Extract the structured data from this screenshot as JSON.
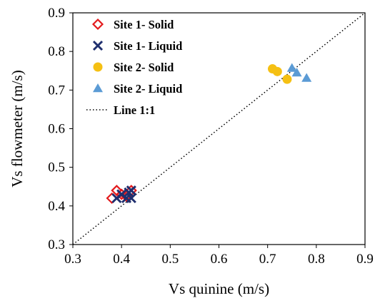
{
  "chart_data": {
    "type": "scatter",
    "xlabel": "Vs quinine (m/s)",
    "ylabel": "Vs flowmeter  (m/s)",
    "xlim": [
      0.3,
      0.9
    ],
    "ylim": [
      0.3,
      0.9
    ],
    "xticks": [
      "0.3",
      "0.4",
      "0.5",
      "0.6",
      "0.7",
      "0.8",
      "0.9"
    ],
    "yticks": [
      "0.3",
      "0.4",
      "0.5",
      "0.6",
      "0.7",
      "0.8",
      "0.9"
    ],
    "grid": false,
    "legend_position": "top-left",
    "series": [
      {
        "name": "Site 1- Solid",
        "marker": "diamond-open",
        "color": "#e31a1c",
        "points": [
          {
            "x": 0.38,
            "y": 0.42
          },
          {
            "x": 0.39,
            "y": 0.44
          },
          {
            "x": 0.4,
            "y": 0.43
          },
          {
            "x": 0.41,
            "y": 0.425
          },
          {
            "x": 0.42,
            "y": 0.44
          }
        ]
      },
      {
        "name": "Site 1- Liquid",
        "marker": "x",
        "color": "#1f2f6e",
        "points": [
          {
            "x": 0.39,
            "y": 0.42
          },
          {
            "x": 0.4,
            "y": 0.43
          },
          {
            "x": 0.41,
            "y": 0.42
          },
          {
            "x": 0.415,
            "y": 0.435
          },
          {
            "x": 0.42,
            "y": 0.42
          },
          {
            "x": 0.42,
            "y": 0.44
          }
        ]
      },
      {
        "name": "Site 2- Solid",
        "marker": "circle",
        "color": "#f5c013",
        "points": [
          {
            "x": 0.71,
            "y": 0.755
          },
          {
            "x": 0.72,
            "y": 0.748
          },
          {
            "x": 0.74,
            "y": 0.728
          }
        ]
      },
      {
        "name": "Site 2- Liquid",
        "marker": "triangle",
        "color": "#5b9bd5",
        "points": [
          {
            "x": 0.75,
            "y": 0.757
          },
          {
            "x": 0.76,
            "y": 0.745
          },
          {
            "x": 0.78,
            "y": 0.731
          }
        ]
      }
    ],
    "reference_line": {
      "name": "Line 1:1",
      "style": "dotted",
      "color": "#000000",
      "points": [
        {
          "x": 0.3,
          "y": 0.3
        },
        {
          "x": 0.9,
          "y": 0.9
        }
      ]
    }
  }
}
